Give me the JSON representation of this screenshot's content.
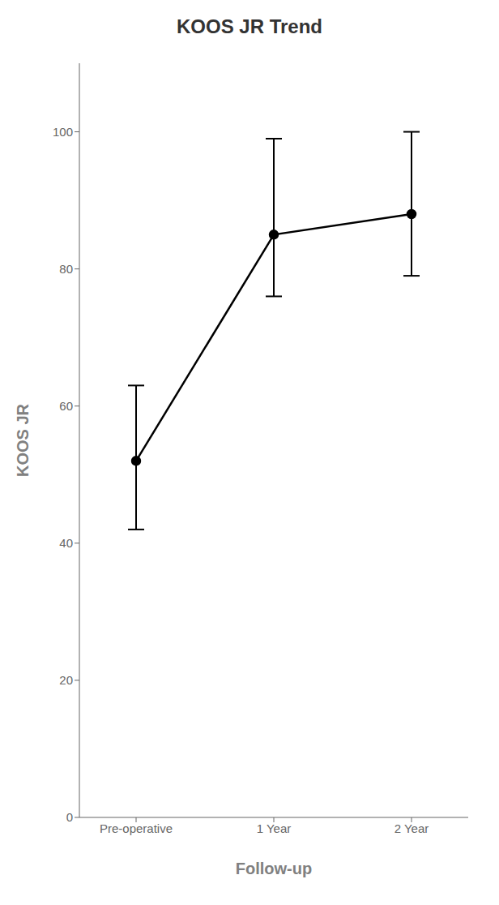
{
  "chart_data": {
    "type": "line",
    "title": "KOOS JR Trend",
    "xlabel": "Follow-up",
    "ylabel": "KOOS JR",
    "categories": [
      "Pre-operative",
      "1 Year",
      "2 Year"
    ],
    "values": [
      52,
      85,
      88
    ],
    "error_lower": [
      10,
      9,
      9
    ],
    "error_upper": [
      11,
      14,
      12
    ],
    "ylim": [
      0,
      110
    ],
    "yticks": [
      0,
      20,
      40,
      60,
      80,
      100
    ],
    "color": "#000000",
    "grid": false
  }
}
